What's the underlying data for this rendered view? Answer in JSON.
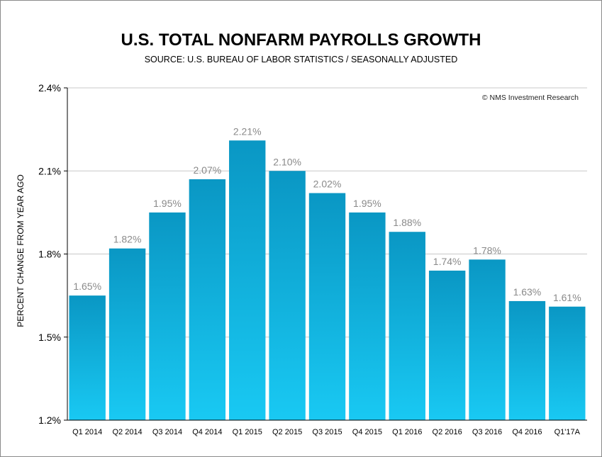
{
  "title": "U.S. TOTAL NONFARM PAYROLLS GROWTH",
  "subtitle": "SOURCE: U.S. BUREAU OF LABOR STATISTICS / SEASONALLY ADJUSTED",
  "copyright": "© NMS Investment Research",
  "colors": {
    "bar_top": "#0a97c4",
    "bar_bottom": "#19c9f3",
    "grid": "#c8c8c8",
    "label": "#8a8a8a",
    "axis_text": "#000000"
  },
  "chart_data": {
    "type": "bar",
    "title": "U.S. TOTAL NONFARM PAYROLLS GROWTH",
    "subtitle": "SOURCE: U.S. BUREAU OF LABOR STATISTICS / SEASONALLY ADJUSTED",
    "xlabel": "",
    "ylabel": "PERCENT CHANGE FROM YEAR AGO",
    "categories": [
      "Q1 2014",
      "Q2 2014",
      "Q3 2014",
      "Q4 2014",
      "Q1 2015",
      "Q2 2015",
      "Q3 2015",
      "Q4 2015",
      "Q1 2016",
      "Q2 2016",
      "Q3 2016",
      "Q4 2016",
      "Q1'17A"
    ],
    "values": [
      1.65,
      1.82,
      1.95,
      2.07,
      2.21,
      2.1,
      2.02,
      1.95,
      1.88,
      1.74,
      1.78,
      1.63,
      1.61
    ],
    "data_labels": [
      "1.65%",
      "1.82%",
      "1.95%",
      "2.07%",
      "2.21%",
      "2.10%",
      "2.02%",
      "1.95%",
      "1.88%",
      "1.74%",
      "1.78%",
      "1.63%",
      "1.61%"
    ],
    "ylim": [
      1.2,
      2.4
    ],
    "yticks": [
      1.2,
      1.5,
      1.8,
      2.1,
      2.4
    ],
    "ytick_labels": [
      "1.2%",
      "1.5%",
      "1.8%",
      "2.1%",
      "2.4%"
    ],
    "grid": true,
    "legend": "none"
  }
}
